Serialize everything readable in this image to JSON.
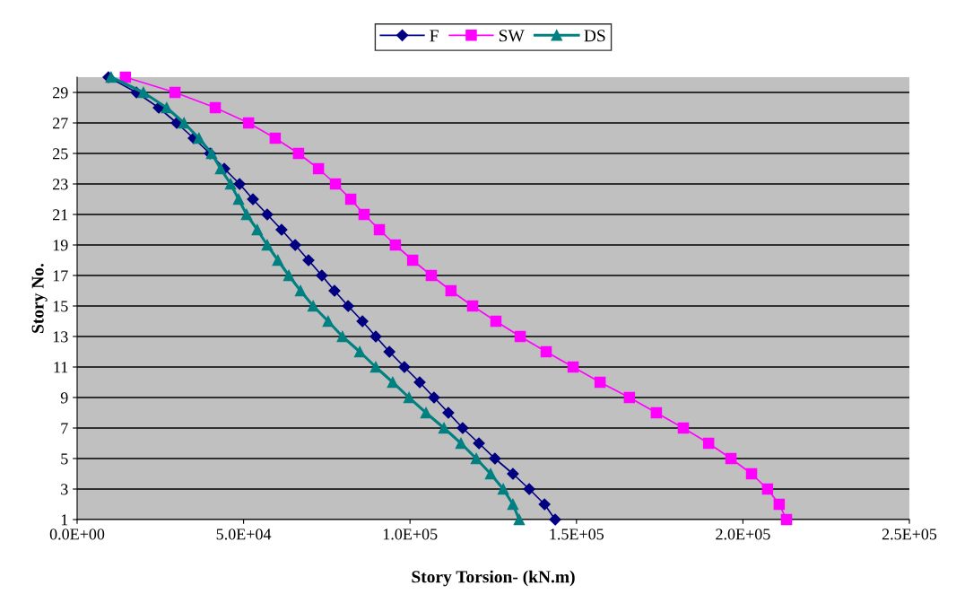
{
  "chart_data": {
    "type": "line",
    "xlabel": "Story Torsion- (kN.m)",
    "ylabel": "Story No.",
    "xlim": [
      0,
      250000
    ],
    "xticks": [
      {
        "value": 0,
        "label": "0.0E+00"
      },
      {
        "value": 50000,
        "label": "5.0E+04"
      },
      {
        "value": 100000,
        "label": "1.0E+05"
      },
      {
        "value": 150000,
        "label": "1.5E+05"
      },
      {
        "value": 200000,
        "label": "2.0E+05"
      },
      {
        "value": 250000,
        "label": "2.5E+05"
      }
    ],
    "ylim": [
      1,
      30
    ],
    "yticks": [
      1,
      3,
      5,
      7,
      9,
      11,
      13,
      15,
      17,
      19,
      21,
      23,
      25,
      27,
      29
    ],
    "grid": "y",
    "legend": "top",
    "series": [
      {
        "name": "F",
        "color": "#000080",
        "marker": "diamond",
        "x": [
          9400,
          17800,
          24500,
          29900,
          35000,
          39900,
          44200,
          48800,
          52800,
          57100,
          61400,
          65500,
          69500,
          73500,
          77300,
          81400,
          85700,
          89700,
          93800,
          98300,
          102900,
          107200,
          111500,
          115800,
          120700,
          125500,
          130900,
          135800,
          140400,
          143600
        ],
        "values": [
          30,
          29,
          28,
          27,
          26,
          25,
          24,
          23,
          22,
          21,
          20,
          19,
          18,
          17,
          16,
          15,
          14,
          13,
          12,
          11,
          10,
          9,
          8,
          7,
          6,
          5,
          4,
          3,
          2,
          1
        ]
      },
      {
        "name": "SW",
        "color": "#ff00ff",
        "marker": "square",
        "x": [
          14500,
          29400,
          41500,
          51500,
          59500,
          66500,
          72500,
          77600,
          82200,
          86200,
          90800,
          95600,
          100800,
          106400,
          112300,
          118800,
          125800,
          133100,
          140900,
          149000,
          157100,
          165900,
          174000,
          182100,
          189700,
          196400,
          202600,
          207400,
          210900,
          213100
        ],
        "values": [
          30,
          29,
          28,
          27,
          26,
          25,
          24,
          23,
          22,
          21,
          20,
          19,
          18,
          17,
          16,
          15,
          14,
          13,
          12,
          11,
          10,
          9,
          8,
          7,
          6,
          5,
          4,
          3,
          2,
          1
        ]
      },
      {
        "name": "DS",
        "color": "#008080",
        "marker": "triangle",
        "x": [
          10200,
          19900,
          26900,
          32100,
          36600,
          40400,
          43100,
          46100,
          48500,
          50900,
          54100,
          57100,
          60300,
          63600,
          67100,
          70900,
          75400,
          79700,
          84900,
          89700,
          94800,
          99700,
          104800,
          110200,
          115300,
          119900,
          124200,
          128000,
          130900,
          132800
        ],
        "values": [
          30,
          29,
          28,
          27,
          26,
          25,
          24,
          23,
          22,
          21,
          20,
          19,
          18,
          17,
          16,
          15,
          14,
          13,
          12,
          11,
          10,
          9,
          8,
          7,
          6,
          5,
          4,
          3,
          2,
          1
        ]
      }
    ]
  }
}
